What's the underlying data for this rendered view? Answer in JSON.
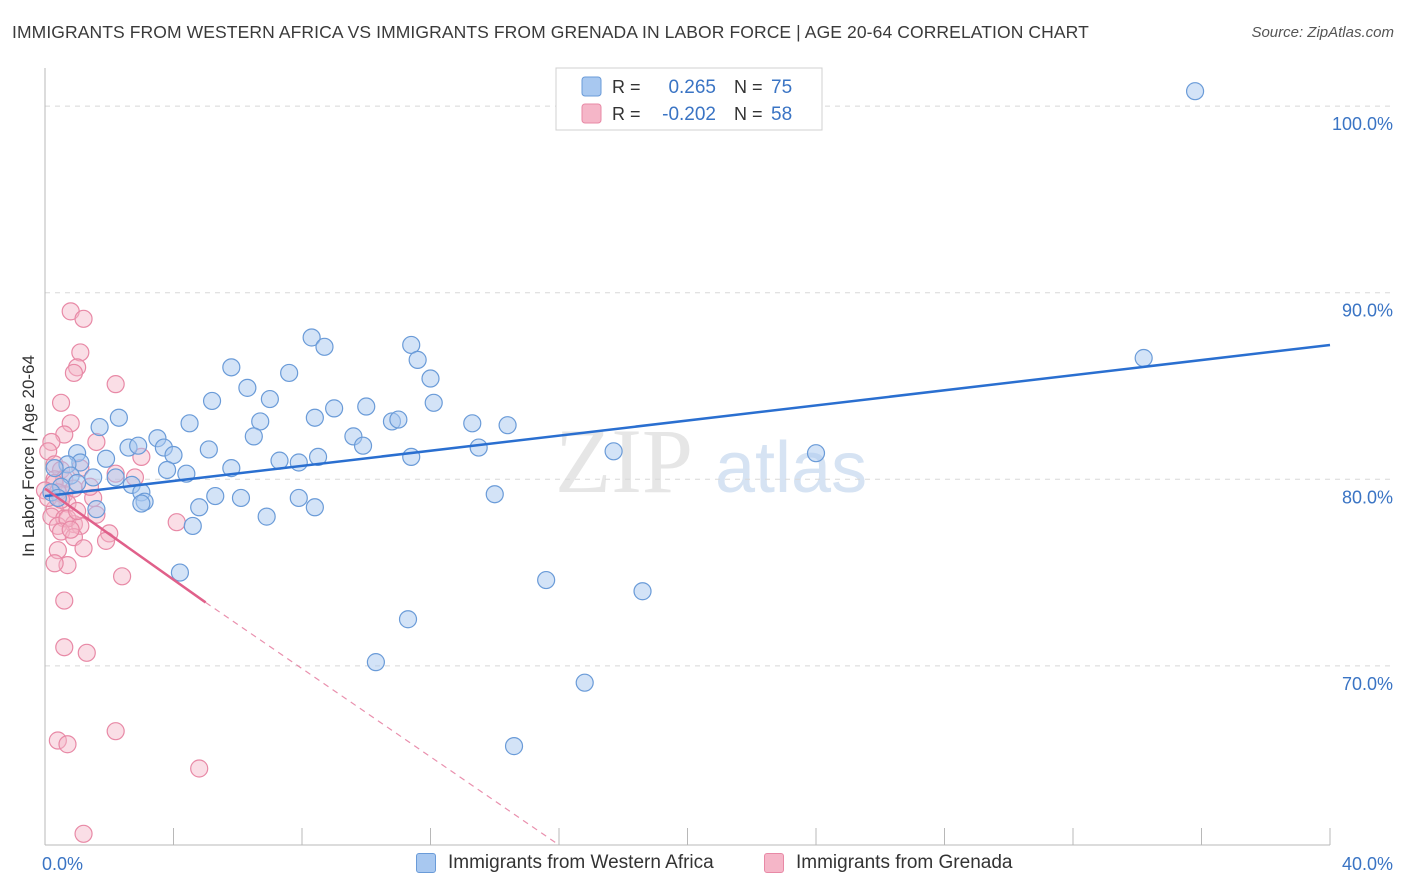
{
  "title": "IMMIGRANTS FROM WESTERN AFRICA VS IMMIGRANTS FROM GRENADA IN LABOR FORCE | AGE 20-64 CORRELATION CHART",
  "source": "Source: ZipAtlas.com",
  "watermark": {
    "zip": "ZIP",
    "atlas": "atlas"
  },
  "legend": {
    "rows": [
      {
        "r_label": "R =",
        "r_value": "0.265",
        "n_label": "N =",
        "n_value": "75"
      },
      {
        "r_label": "R =",
        "r_value": "-0.202",
        "n_label": "N =",
        "n_value": "58"
      }
    ]
  },
  "bottom_legend": {
    "s1": "Immigrants from Western Africa",
    "s2": "Immigrants from Grenada"
  },
  "colors": {
    "blue_fill": "#a8c8f0",
    "blue_stroke": "#6a9bd8",
    "blue_line": "#2a6fd0",
    "pink_fill": "#f5b6c8",
    "pink_stroke": "#e889a6",
    "pink_line": "#e0608a",
    "axis_text": "#3a74c4",
    "grid": "#d8d8d8"
  },
  "chart_data": {
    "type": "scatter",
    "title": "IMMIGRANTS FROM WESTERN AFRICA VS IMMIGRANTS FROM GRENADA IN LABOR FORCE | AGE 20-64 CORRELATION CHART",
    "xlabel": "",
    "ylabel": "In Labor Force | Age 20-64",
    "xlim": [
      0,
      40
    ],
    "ylim": [
      60.4,
      101.4
    ],
    "x_tick_labels": [
      "0.0%",
      "40.0%"
    ],
    "y_ticks": [
      70,
      80,
      90,
      100
    ],
    "y_tick_labels": [
      "70.0%",
      "80.0%",
      "90.0%",
      "100.0%"
    ],
    "grid": true,
    "series": [
      {
        "name": "Immigrants from Western Africa",
        "R": 0.265,
        "N": 75,
        "trend": {
          "x": [
            0.0,
            40.0
          ],
          "y": [
            79.1,
            87.2
          ]
        },
        "points": [
          [
            35.8,
            100.8
          ],
          [
            34.2,
            86.5
          ],
          [
            11.4,
            87.2
          ],
          [
            8.3,
            87.6
          ],
          [
            8.7,
            87.1
          ],
          [
            11.6,
            86.4
          ],
          [
            7.6,
            85.7
          ],
          [
            12.0,
            85.4
          ],
          [
            5.8,
            86.0
          ],
          [
            6.3,
            84.9
          ],
          [
            10.0,
            83.9
          ],
          [
            7.0,
            84.3
          ],
          [
            12.1,
            84.1
          ],
          [
            9.0,
            83.8
          ],
          [
            10.8,
            83.1
          ],
          [
            13.3,
            83.0
          ],
          [
            8.4,
            83.3
          ],
          [
            6.7,
            83.1
          ],
          [
            5.2,
            84.2
          ],
          [
            11.0,
            83.2
          ],
          [
            4.5,
            83.0
          ],
          [
            2.3,
            83.3
          ],
          [
            3.5,
            82.2
          ],
          [
            1.7,
            82.8
          ],
          [
            6.5,
            82.3
          ],
          [
            2.6,
            81.7
          ],
          [
            1.0,
            81.4
          ],
          [
            9.6,
            82.3
          ],
          [
            14.4,
            82.9
          ],
          [
            13.5,
            81.7
          ],
          [
            17.7,
            81.5
          ],
          [
            2.9,
            81.8
          ],
          [
            3.7,
            81.7
          ],
          [
            4.0,
            81.3
          ],
          [
            5.1,
            81.6
          ],
          [
            9.9,
            81.8
          ],
          [
            7.3,
            81.0
          ],
          [
            7.9,
            80.9
          ],
          [
            8.5,
            81.2
          ],
          [
            11.4,
            81.2
          ],
          [
            3.8,
            80.5
          ],
          [
            5.8,
            80.6
          ],
          [
            1.1,
            80.9
          ],
          [
            1.9,
            81.1
          ],
          [
            0.7,
            80.8
          ],
          [
            0.3,
            80.6
          ],
          [
            0.8,
            80.2
          ],
          [
            24.0,
            81.4
          ],
          [
            4.4,
            80.3
          ],
          [
            1.0,
            79.8
          ],
          [
            2.7,
            79.7
          ],
          [
            0.5,
            79.6
          ],
          [
            0.2,
            79.3
          ],
          [
            3.0,
            79.3
          ],
          [
            3.1,
            78.8
          ],
          [
            6.1,
            79.0
          ],
          [
            7.9,
            79.0
          ],
          [
            14.0,
            79.2
          ],
          [
            5.3,
            79.1
          ],
          [
            4.8,
            78.5
          ],
          [
            4.6,
            77.5
          ],
          [
            8.4,
            78.5
          ],
          [
            6.9,
            78.0
          ],
          [
            1.6,
            78.4
          ],
          [
            4.2,
            75.0
          ],
          [
            15.6,
            74.6
          ],
          [
            18.6,
            74.0
          ],
          [
            11.3,
            72.5
          ],
          [
            10.3,
            70.2
          ],
          [
            16.8,
            69.1
          ],
          [
            14.6,
            65.7
          ],
          [
            3.0,
            78.7
          ],
          [
            1.5,
            80.1
          ],
          [
            0.4,
            79.0
          ],
          [
            2.2,
            80.1
          ]
        ]
      },
      {
        "name": "Immigrants from Grenada",
        "R": -0.202,
        "N": 58,
        "trend": {
          "x": [
            0.0,
            5.0
          ],
          "y": [
            79.5,
            73.4
          ]
        },
        "trend_dashed": {
          "x": [
            5.0,
            16.0
          ],
          "y": [
            73.4,
            60.4
          ]
        },
        "points": [
          [
            0.8,
            89.0
          ],
          [
            1.2,
            88.6
          ],
          [
            1.1,
            86.8
          ],
          [
            1.0,
            86.0
          ],
          [
            0.9,
            85.7
          ],
          [
            2.2,
            85.1
          ],
          [
            0.5,
            84.1
          ],
          [
            0.8,
            83.0
          ],
          [
            0.6,
            82.4
          ],
          [
            0.2,
            82.0
          ],
          [
            1.6,
            82.0
          ],
          [
            3.0,
            81.2
          ],
          [
            0.1,
            81.5
          ],
          [
            0.3,
            80.8
          ],
          [
            0.5,
            80.5
          ],
          [
            1.1,
            80.6
          ],
          [
            0.3,
            80.0
          ],
          [
            2.2,
            80.3
          ],
          [
            0.6,
            80.0
          ],
          [
            2.8,
            80.1
          ],
          [
            0.3,
            79.8
          ],
          [
            0.0,
            79.4
          ],
          [
            0.6,
            79.2
          ],
          [
            0.9,
            79.5
          ],
          [
            1.5,
            79.0
          ],
          [
            0.7,
            78.7
          ],
          [
            0.3,
            78.4
          ],
          [
            1.6,
            78.1
          ],
          [
            0.2,
            78.0
          ],
          [
            0.6,
            77.9
          ],
          [
            0.4,
            77.5
          ],
          [
            0.9,
            77.6
          ],
          [
            0.7,
            77.9
          ],
          [
            1.1,
            77.5
          ],
          [
            4.1,
            77.7
          ],
          [
            0.5,
            77.2
          ],
          [
            2.0,
            77.1
          ],
          [
            0.9,
            76.9
          ],
          [
            1.2,
            76.3
          ],
          [
            0.4,
            76.2
          ],
          [
            0.7,
            75.4
          ],
          [
            0.3,
            75.5
          ],
          [
            2.4,
            74.8
          ],
          [
            0.6,
            73.5
          ],
          [
            0.6,
            71.0
          ],
          [
            1.3,
            70.7
          ],
          [
            0.4,
            66.0
          ],
          [
            0.7,
            65.8
          ],
          [
            2.2,
            66.5
          ],
          [
            4.8,
            64.5
          ],
          [
            1.2,
            61.0
          ],
          [
            0.1,
            79.0
          ],
          [
            0.4,
            79.3
          ],
          [
            1.4,
            79.6
          ],
          [
            0.5,
            78.9
          ],
          [
            1.9,
            76.7
          ],
          [
            0.8,
            77.3
          ],
          [
            1.0,
            78.3
          ]
        ]
      }
    ]
  }
}
